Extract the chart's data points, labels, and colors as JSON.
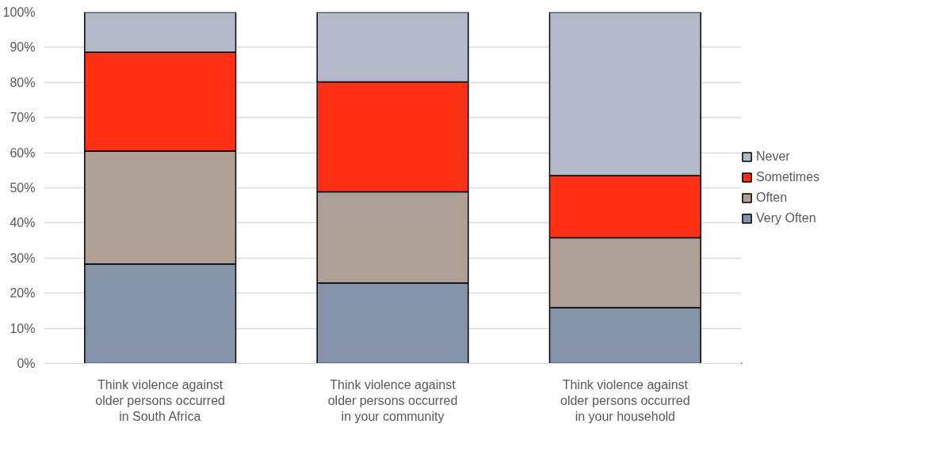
{
  "chart_data": {
    "type": "bar",
    "stacked": true,
    "categories": [
      "Think violence against older persons occurred in South Africa",
      "Think violence against older persons occurred in your community",
      "Think violence against older persons occurred in your household"
    ],
    "series": [
      {
        "name": "Very Often",
        "color": "#8493a8",
        "values": [
          28.3,
          22.9,
          15.9
        ]
      },
      {
        "name": "Often",
        "color": "#ae9f97",
        "values": [
          32.2,
          26.0,
          19.9
        ]
      },
      {
        "name": "Sometimes",
        "color": "#ff3015",
        "values": [
          28.1,
          31.3,
          17.7
        ]
      },
      {
        "name": "Never",
        "color": "#b3b9c9",
        "values": [
          11.4,
          19.8,
          46.5
        ]
      }
    ],
    "ylim": [
      0,
      100
    ],
    "yticks": [
      {
        "value": 0,
        "label": "0%"
      },
      {
        "value": 10,
        "label": "10%"
      },
      {
        "value": 20,
        "label": "20%"
      },
      {
        "value": 30,
        "label": "30%"
      },
      {
        "value": 40,
        "label": "40%"
      },
      {
        "value": 50,
        "label": "50%"
      },
      {
        "value": 60,
        "label": "60%"
      },
      {
        "value": 70,
        "label": "70%"
      },
      {
        "value": 80,
        "label": "80%"
      },
      {
        "value": 90,
        "label": "90%"
      },
      {
        "value": 100,
        "label": "100%"
      }
    ],
    "grid": "y",
    "legend": "right"
  }
}
